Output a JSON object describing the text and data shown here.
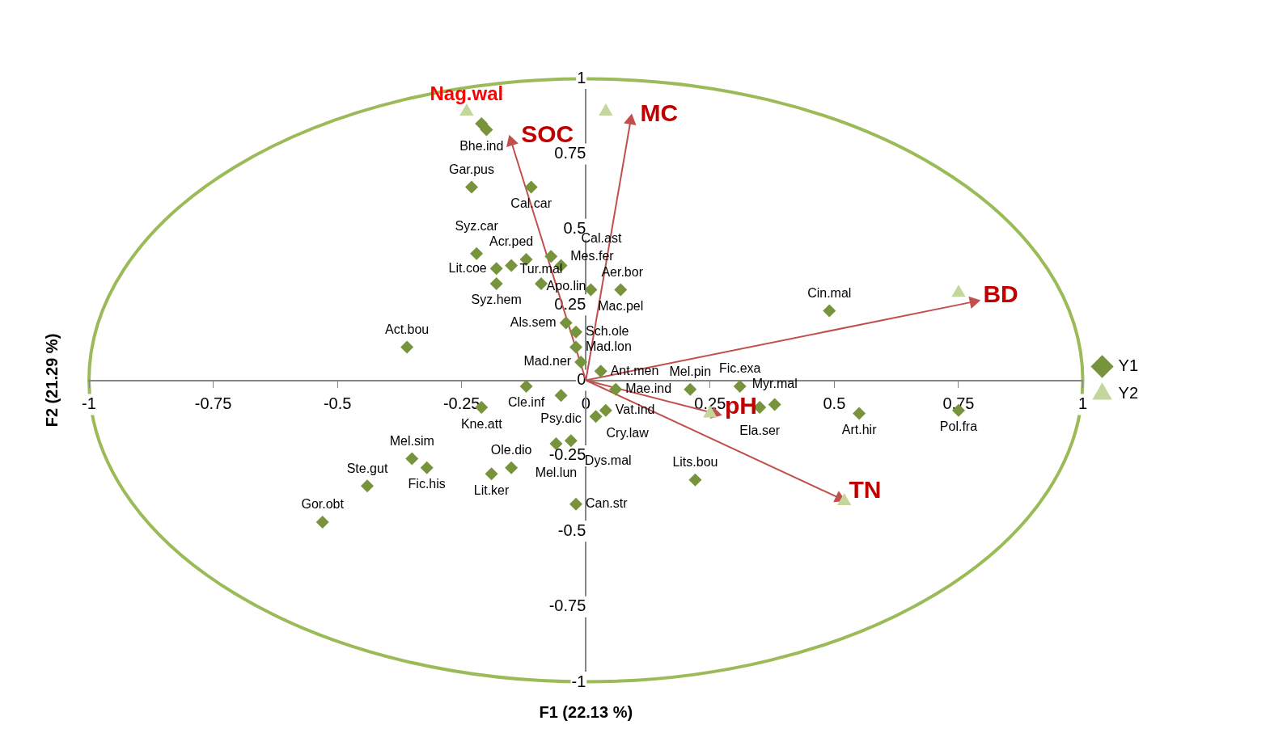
{
  "chart_data": {
    "type": "scatter",
    "xlabel": "F1 (22.13 %)",
    "ylabel": "F2 (21.29 %)",
    "xlim": [
      -1,
      1
    ],
    "ylim": [
      -1,
      1
    ],
    "xticks": [
      -1,
      -0.75,
      -0.5,
      -0.25,
      0,
      0.25,
      0.5,
      0.75,
      1
    ],
    "yticks": [
      -1,
      -0.75,
      -0.5,
      -0.25,
      0,
      0.25,
      0.5,
      0.75,
      1
    ],
    "grid": false,
    "legend": "right",
    "series": [
      {
        "name": "Y1",
        "type": "scatter",
        "marker": "diamond",
        "color": "#77933c",
        "x": [
          -0.21,
          -0.2,
          -0.23,
          -0.11,
          -0.18,
          -0.18,
          -0.15,
          -0.12,
          -0.22,
          -0.07,
          -0.05,
          0.01,
          0.07,
          -0.09,
          -0.04,
          -0.02,
          -0.02,
          -0.01,
          0.03,
          -0.12,
          -0.21,
          -0.05,
          0.02,
          0.04,
          0.06,
          0.21,
          0.31,
          0.35,
          0.38,
          0.55,
          0.75,
          0.49,
          -0.36,
          -0.35,
          -0.32,
          -0.19,
          -0.15,
          -0.06,
          -0.03,
          -0.02,
          0.22,
          -0.44,
          -0.53
        ],
        "values": [
          0.85,
          0.83,
          0.64,
          0.64,
          0.37,
          0.32,
          0.38,
          0.4,
          0.42,
          0.41,
          0.38,
          0.3,
          0.3,
          0.32,
          0.19,
          0.16,
          0.11,
          0.06,
          0.03,
          -0.02,
          -0.09,
          -0.05,
          -0.12,
          -0.1,
          -0.03,
          -0.03,
          -0.02,
          -0.09,
          -0.08,
          -0.11,
          -0.1,
          0.23,
          0.11,
          -0.26,
          -0.29,
          -0.31,
          -0.29,
          -0.21,
          -0.2,
          -0.41,
          -0.33,
          -0.35,
          -0.47
        ],
        "value_labels": [
          "Bhe.ind",
          null,
          "Gar.pus",
          "Cal.car",
          "Lit.coe",
          "Syz.hem",
          "Acr.ped",
          "Apo.lin",
          "Syz.car",
          "Mes.fer",
          "Cal.ast",
          "Aer.bor",
          "Mac.pel",
          "Tur.mal",
          "Als.sem",
          "Sch.ole",
          "Mad.lon",
          "Mad.ner",
          "Ant.men",
          "Cle.inf",
          "Kne.att",
          "Psy.dic",
          "Cry.law",
          "Vat.ind",
          "Mae.ind",
          "Mel.pin",
          "Fic.exa",
          "Ela.ser",
          "Myr.mal",
          "Art.hir",
          "Pol.fra",
          "Cin.mal",
          "Act.bou",
          "Mel.sim",
          "Fic.his",
          "Lit.ker",
          "Ole.dio",
          "Mel.lun",
          "Dys.mal",
          "Can.str",
          "Lits.bou",
          "Ste.gut",
          "Gor.obt"
        ]
      },
      {
        "name": "Y2",
        "type": "scatter",
        "marker": "triangle",
        "color": "#c3d69b",
        "x": [
          -0.24,
          0.04,
          0.75,
          0.52,
          0.25
        ],
        "values": [
          0.89,
          0.89,
          0.29,
          -0.4,
          -0.11
        ],
        "value_labels": [
          "Nag.wal",
          null,
          null,
          null,
          null
        ]
      },
      {
        "name": "SOC",
        "type": "line",
        "color": "#c0504d",
        "x": [
          0,
          -0.15
        ],
        "values": [
          0,
          0.79
        ]
      },
      {
        "name": "MC",
        "type": "line",
        "color": "#c0504d",
        "x": [
          0,
          0.09
        ],
        "values": [
          0,
          0.86
        ]
      },
      {
        "name": "BD",
        "type": "line",
        "color": "#c0504d",
        "x": [
          0,
          0.78
        ],
        "values": [
          0,
          0.26
        ]
      },
      {
        "name": "pH",
        "type": "line",
        "color": "#c0504d",
        "x": [
          0,
          0.26
        ],
        "values": [
          0,
          -0.11
        ]
      },
      {
        "name": "TN",
        "type": "line",
        "color": "#c0504d",
        "x": [
          0,
          0.51
        ],
        "values": [
          0,
          -0.39
        ]
      }
    ]
  }
}
